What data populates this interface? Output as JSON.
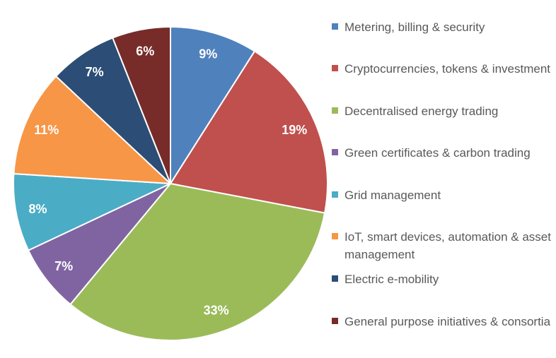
{
  "chart_data": {
    "type": "pie",
    "start": "top",
    "direction": "clockwise",
    "legend_position": "right",
    "slices": [
      {
        "label": "Metering, billing & security",
        "value": 9,
        "data_label": "9%",
        "color": "#4F81BD"
      },
      {
        "label": "Cryptocurrencies, tokens & investment",
        "value": 19,
        "data_label": "19%",
        "color": "#C0504D"
      },
      {
        "label": "Decentralised energy trading",
        "value": 33,
        "data_label": "33%",
        "color": "#9BBB59"
      },
      {
        "label": "Green certificates & carbon trading",
        "value": 7,
        "data_label": "7%",
        "color": "#8064A2"
      },
      {
        "label": "Grid management",
        "value": 8,
        "data_label": "8%",
        "color": "#4BACC6"
      },
      {
        "label": "IoT, smart devices, automation & asset management",
        "value": 11,
        "data_label": "11%",
        "color": "#F79646"
      },
      {
        "label": "Electric e-mobility",
        "value": 7,
        "data_label": "7%",
        "color": "#2C4D75"
      },
      {
        "label": "General purpose initiatives & consortia",
        "value": 6,
        "data_label": "6%",
        "color": "#772C2A"
      }
    ]
  }
}
